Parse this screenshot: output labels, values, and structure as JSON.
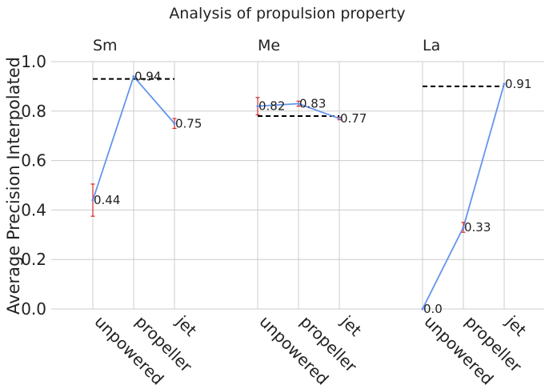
{
  "chart_data": {
    "type": "line",
    "title": "Analysis of propulsion property",
    "ylabel": "Average Precision Interpolated",
    "ylim": [
      0.0,
      1.0
    ],
    "yticks": [
      "0.0",
      "0.2",
      "0.4",
      "0.6",
      "0.8",
      "1.0"
    ],
    "grid": true,
    "line_color": "#6495ED",
    "error_color": "#d62728",
    "baseline_color": "#000000",
    "groups": [
      {
        "name": "Sm",
        "categories": [
          "unpowered",
          "propeller",
          "jet"
        ],
        "values": [
          0.44,
          0.94,
          0.75
        ],
        "labels": [
          "0.44",
          "0.94",
          "0.75"
        ],
        "errors": [
          0.065,
          0.0,
          0.02
        ],
        "baseline": 0.93
      },
      {
        "name": "Me",
        "categories": [
          "unpowered",
          "propeller",
          "jet"
        ],
        "values": [
          0.82,
          0.83,
          0.77
        ],
        "labels": [
          "0.82",
          "0.83",
          "0.77"
        ],
        "errors": [
          0.035,
          0.01,
          0.005
        ],
        "baseline": 0.78
      },
      {
        "name": "La",
        "categories": [
          "unpowered",
          "propeller",
          "jet"
        ],
        "values": [
          0.0,
          0.33,
          0.91
        ],
        "labels": [
          "0.0",
          "0.33",
          "0.91"
        ],
        "errors": [
          0.0,
          0.02,
          0.0
        ],
        "baseline": 0.9
      }
    ]
  }
}
